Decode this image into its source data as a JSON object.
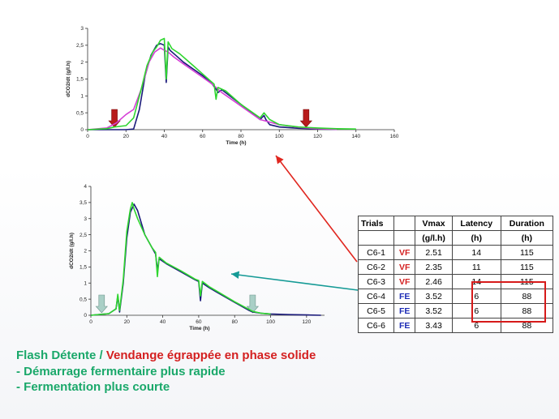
{
  "chart_data": [
    {
      "type": "line",
      "xlabel": "Time (h)",
      "ylabel": "dCO2/dt (g/l.h)",
      "xlim": [
        0,
        160
      ],
      "ylim": [
        0,
        3
      ],
      "x_ticks": [
        "0",
        "20",
        "40",
        "60",
        "80",
        "100",
        "120",
        "140",
        "160"
      ],
      "y_ticks": [
        "0",
        "0,5",
        "1",
        "1,5",
        "2",
        "2,5",
        "3"
      ],
      "grid": false,
      "markers": [
        {
          "x": 14,
          "direction": "down",
          "color": "#b81c1c"
        },
        {
          "x": 114,
          "direction": "down",
          "color": "#b81c1c"
        }
      ],
      "series": [
        {
          "color": "#1a1a7a",
          "x": [
            0,
            20,
            24,
            27,
            30,
            33,
            36,
            38,
            40,
            41,
            42,
            43,
            46,
            50,
            55,
            60,
            65,
            67,
            68,
            70,
            80,
            90,
            92,
            93,
            95,
            100,
            110,
            120,
            130
          ],
          "y": [
            0,
            0,
            0.02,
            0.6,
            1.6,
            2.2,
            2.5,
            2.55,
            2.5,
            1.4,
            2.45,
            2.35,
            2.2,
            2.0,
            1.8,
            1.6,
            1.35,
            1.2,
            1.1,
            1.18,
            0.75,
            0.3,
            0.42,
            0.3,
            0.15,
            0.08,
            0.04,
            0.02,
            0.01
          ]
        },
        {
          "color": "#d53fd6",
          "x": [
            0,
            10,
            15,
            20,
            24,
            28,
            32,
            35,
            38,
            40,
            42,
            45,
            50,
            55,
            60,
            65,
            70,
            80,
            90,
            100,
            110,
            120,
            130
          ],
          "y": [
            0,
            0.05,
            0.2,
            0.45,
            0.6,
            1.2,
            2.0,
            2.3,
            2.42,
            2.35,
            2.3,
            2.15,
            1.95,
            1.75,
            1.55,
            1.35,
            1.1,
            0.7,
            0.3,
            0.15,
            0.07,
            0.03,
            0.01
          ]
        },
        {
          "color": "#2fd62f",
          "x": [
            0,
            10,
            14,
            20,
            24,
            28,
            31,
            34,
            36,
            38,
            40,
            41,
            42,
            44,
            48,
            52,
            56,
            60,
            66,
            67,
            68,
            72,
            80,
            90,
            92,
            95,
            100,
            110,
            120,
            130,
            140
          ],
          "y": [
            0,
            0.03,
            0.08,
            0.12,
            0.35,
            1.2,
            1.9,
            2.3,
            2.45,
            2.65,
            2.7,
            1.5,
            2.6,
            2.4,
            2.25,
            2.05,
            1.85,
            1.65,
            1.35,
            0.9,
            1.25,
            1.15,
            0.75,
            0.35,
            0.5,
            0.3,
            0.15,
            0.08,
            0.05,
            0.03,
            0.02
          ]
        }
      ]
    },
    {
      "type": "line",
      "xlabel": "Time (h)",
      "ylabel": "dCO2/dt (g/l.h)",
      "xlim": [
        0,
        130
      ],
      "ylim": [
        0,
        4
      ],
      "x_ticks": [
        "0",
        "20",
        "40",
        "60",
        "80",
        "100",
        "120"
      ],
      "y_ticks": [
        "0",
        "0,5",
        "1",
        "1,5",
        "2",
        "2,5",
        "3",
        "3,5",
        "4"
      ],
      "grid": false,
      "markers": [
        {
          "x": 6,
          "direction": "down",
          "color": "#a9cfc6"
        },
        {
          "x": 90,
          "direction": "down",
          "color": "#a9cfc6"
        }
      ],
      "series": [
        {
          "color": "#1a1a7a",
          "x": [
            0,
            10,
            14,
            15,
            16,
            18,
            20,
            22,
            24,
            26,
            30,
            34,
            36,
            37,
            38,
            42,
            50,
            58,
            60,
            61,
            62,
            66,
            70,
            80,
            88,
            90,
            95,
            100,
            110,
            120,
            128
          ],
          "y": [
            0,
            0.05,
            0.2,
            0.6,
            0.1,
            1.0,
            2.4,
            3.2,
            3.45,
            3.25,
            2.5,
            2.1,
            1.9,
            1.4,
            1.75,
            1.6,
            1.35,
            1.1,
            1.05,
            0.45,
            1.0,
            0.85,
            0.72,
            0.4,
            0.15,
            0.1,
            0.06,
            0.04,
            0.02,
            0.01,
            0.0
          ]
        },
        {
          "color": "#2fd62f",
          "x": [
            0,
            10,
            14,
            15,
            16,
            18,
            20,
            22,
            23,
            24,
            26,
            30,
            34,
            36,
            37,
            38,
            42,
            50,
            58,
            60,
            61,
            62,
            66,
            70,
            80,
            88,
            90,
            95,
            100
          ],
          "y": [
            0,
            0.05,
            0.2,
            0.65,
            0.15,
            1.1,
            2.6,
            3.3,
            3.5,
            3.3,
            3.0,
            2.5,
            2.1,
            1.95,
            1.2,
            1.8,
            1.62,
            1.38,
            1.12,
            1.08,
            0.6,
            1.05,
            0.88,
            0.75,
            0.42,
            0.18,
            0.12,
            0.06,
            0.04
          ]
        }
      ]
    }
  ],
  "table": {
    "headers": [
      [
        "Trials",
        "",
        "Vmax",
        "Latency",
        "Duration"
      ],
      [
        "",
        "",
        "(g/l.h)",
        "(h)",
        "(h)"
      ]
    ],
    "rows": [
      {
        "trial": "C6-1",
        "type": "VF",
        "vmax": "2.51",
        "latency": "14",
        "duration": "115"
      },
      {
        "trial": "C6-2",
        "type": "VF",
        "vmax": "2.35",
        "latency": "11",
        "duration": "115"
      },
      {
        "trial": "C6-3",
        "type": "VF",
        "vmax": "2.46",
        "latency": "14",
        "duration": "115"
      },
      {
        "trial": "C6-4",
        "type": "FE",
        "vmax": "3.52",
        "latency": "6",
        "duration": "88"
      },
      {
        "trial": "C6-5",
        "type": "FE",
        "vmax": "3.52",
        "latency": "6",
        "duration": "88"
      },
      {
        "trial": "C6-6",
        "type": "FE",
        "vmax": "3.43",
        "latency": "6",
        "duration": "88"
      }
    ],
    "colors": {
      "VF": "#d42020",
      "FE": "#1c2bb5"
    }
  },
  "caption": {
    "part1": "Flash Détente / ",
    "part2": "Vendange égrappée en phase solide",
    "line2": "- Démarrage fermentaire plus rapide",
    "line3": "- Fermentation plus courte"
  },
  "colors": {
    "arrow_red": "#e0261f",
    "arrow_teal": "#159a96",
    "highlight_box": "#d61a1a",
    "caption_green": "#1aa86a",
    "caption_red": "#d42020"
  }
}
